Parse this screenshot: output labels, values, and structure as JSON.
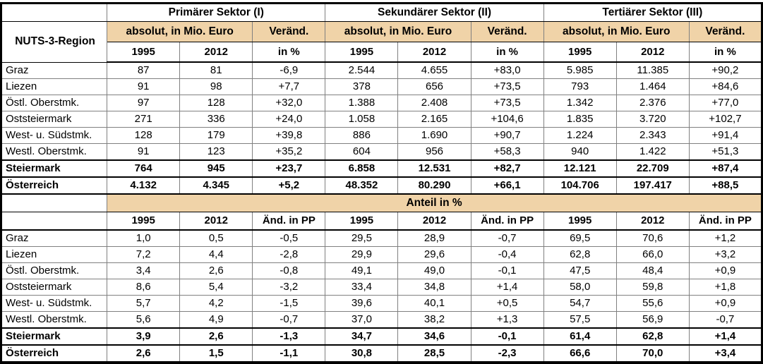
{
  "colors": {
    "header_fill": "#F0D3A8",
    "grid_line": "#808080",
    "frame": "#000000"
  },
  "table": {
    "region_column_header": "NUTS-3-Region",
    "sector_headers": [
      "Primärer Sektor (I)",
      "Sekundärer Sektor (II)",
      "Tertiärer Sektor (III)"
    ],
    "absolute_group_label": "absolut, in Mio. Euro",
    "change_label": "Veränd.",
    "absolute_col_headers": [
      "1995",
      "2012",
      "in %"
    ],
    "share_band_label": "Anteil in %",
    "share_col_headers": [
      "1995",
      "2012",
      "Änd. in PP"
    ],
    "absolute_rows": [
      {
        "region": "Graz",
        "bold": false,
        "values": [
          "87",
          "81",
          "-6,9",
          "2.544",
          "4.655",
          "+83,0",
          "5.985",
          "11.385",
          "+90,2"
        ]
      },
      {
        "region": "Liezen",
        "bold": false,
        "values": [
          "91",
          "98",
          "+7,7",
          "378",
          "656",
          "+73,5",
          "793",
          "1.464",
          "+84,6"
        ]
      },
      {
        "region": "Östl. Oberstmk.",
        "bold": false,
        "values": [
          "97",
          "128",
          "+32,0",
          "1.388",
          "2.408",
          "+73,5",
          "1.342",
          "2.376",
          "+77,0"
        ]
      },
      {
        "region": "Oststeiermark",
        "bold": false,
        "values": [
          "271",
          "336",
          "+24,0",
          "1.058",
          "2.165",
          "+104,6",
          "1.835",
          "3.720",
          "+102,7"
        ]
      },
      {
        "region": "West- u. Südstmk.",
        "bold": false,
        "values": [
          "128",
          "179",
          "+39,8",
          "886",
          "1.690",
          "+90,7",
          "1.224",
          "2.343",
          "+91,4"
        ]
      },
      {
        "region": "Westl. Oberstmk.",
        "bold": false,
        "values": [
          "91",
          "123",
          "+35,2",
          "604",
          "956",
          "+58,3",
          "940",
          "1.422",
          "+51,3"
        ]
      },
      {
        "region": "Steiermark",
        "bold": true,
        "values": [
          "764",
          "945",
          "+23,7",
          "6.858",
          "12.531",
          "+82,7",
          "12.121",
          "22.709",
          "+87,4"
        ]
      },
      {
        "region": "Österreich",
        "bold": true,
        "values": [
          "4.132",
          "4.345",
          "+5,2",
          "48.352",
          "80.290",
          "+66,1",
          "104.706",
          "197.417",
          "+88,5"
        ]
      }
    ],
    "share_rows": [
      {
        "region": "Graz",
        "bold": false,
        "values": [
          "1,0",
          "0,5",
          "-0,5",
          "29,5",
          "28,9",
          "-0,7",
          "69,5",
          "70,6",
          "+1,2"
        ]
      },
      {
        "region": "Liezen",
        "bold": false,
        "values": [
          "7,2",
          "4,4",
          "-2,8",
          "29,9",
          "29,6",
          "-0,4",
          "62,8",
          "66,0",
          "+3,2"
        ]
      },
      {
        "region": "Östl. Oberstmk.",
        "bold": false,
        "values": [
          "3,4",
          "2,6",
          "-0,8",
          "49,1",
          "49,0",
          "-0,1",
          "47,5",
          "48,4",
          "+0,9"
        ]
      },
      {
        "region": "Oststeiermark",
        "bold": false,
        "values": [
          "8,6",
          "5,4",
          "-3,2",
          "33,4",
          "34,8",
          "+1,4",
          "58,0",
          "59,8",
          "+1,8"
        ]
      },
      {
        "region": "West- u. Südstmk.",
        "bold": false,
        "values": [
          "5,7",
          "4,2",
          "-1,5",
          "39,6",
          "40,1",
          "+0,5",
          "54,7",
          "55,6",
          "+0,9"
        ]
      },
      {
        "region": "Westl. Oberstmk.",
        "bold": false,
        "values": [
          "5,6",
          "4,9",
          "-0,7",
          "37,0",
          "38,2",
          "+1,3",
          "57,5",
          "56,9",
          "-0,7"
        ]
      },
      {
        "region": "Steiermark",
        "bold": true,
        "values": [
          "3,9",
          "2,6",
          "-1,3",
          "34,7",
          "34,6",
          "-0,1",
          "61,4",
          "62,8",
          "+1,4"
        ]
      },
      {
        "region": "Österreich",
        "bold": true,
        "values": [
          "2,6",
          "1,5",
          "-1,1",
          "30,8",
          "28,5",
          "-2,3",
          "66,6",
          "70,0",
          "+3,4"
        ]
      }
    ]
  }
}
